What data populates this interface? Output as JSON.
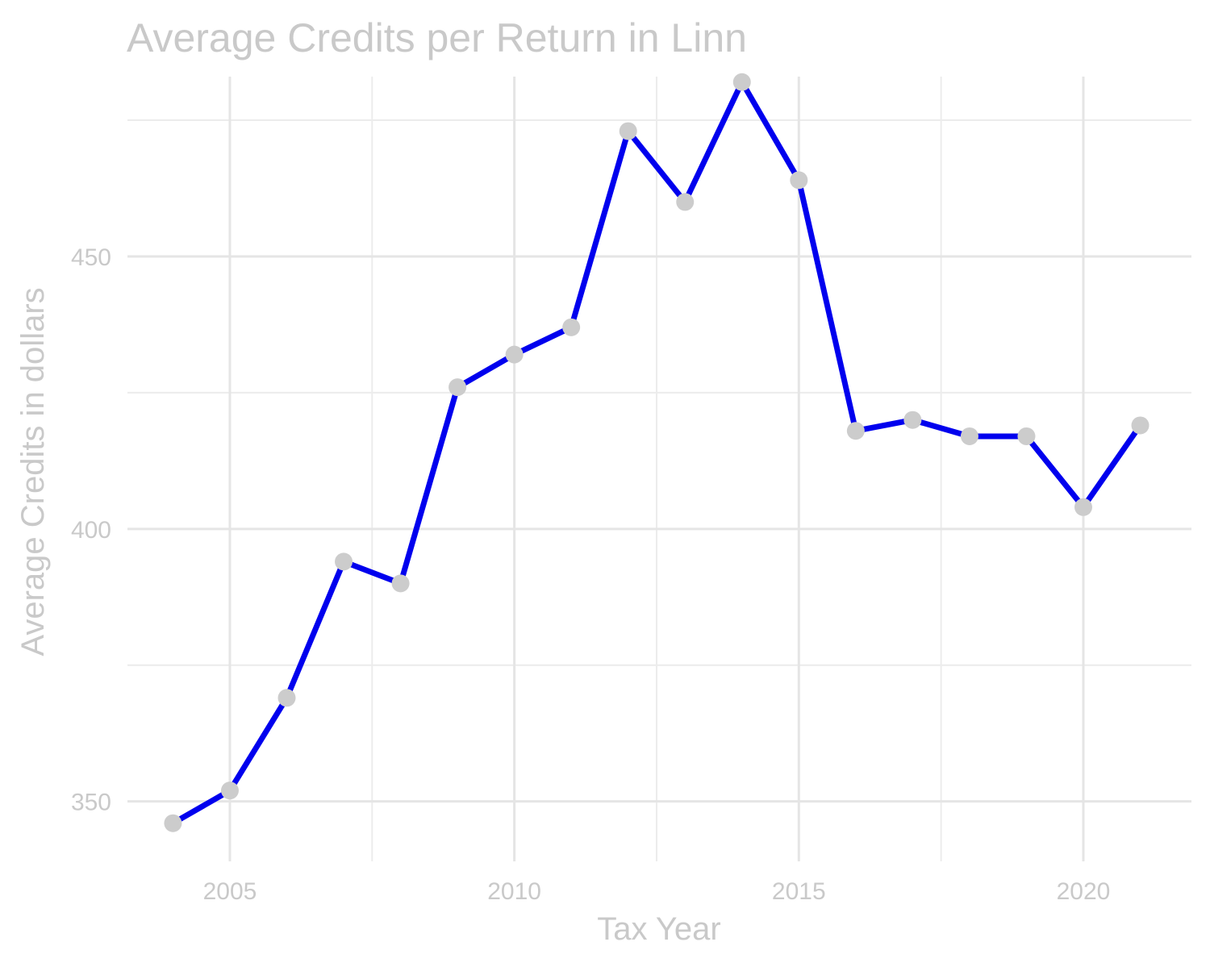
{
  "chart_data": {
    "type": "line",
    "title": "Average Credits per Return in Linn",
    "xlabel": "Tax Year",
    "ylabel": "Average Credits in dollars",
    "xlim": [
      2003.2,
      2021.9
    ],
    "ylim": [
      339,
      483
    ],
    "x_ticks": [
      2005,
      2010,
      2015,
      2020
    ],
    "x_minor_ticks": [
      2007.5,
      2012.5,
      2017.5
    ],
    "y_ticks": [
      350,
      400,
      450
    ],
    "y_minor_ticks": [
      375,
      425,
      475
    ],
    "grid": true,
    "legend": "none",
    "line_color": "#0000ee",
    "point_color": "#cccccc",
    "series": [
      {
        "x": [
          2004,
          2005,
          2006,
          2007,
          2008,
          2009,
          2010,
          2011,
          2012,
          2013,
          2014,
          2015,
          2016,
          2017,
          2018,
          2019,
          2020,
          2021
        ],
        "values": [
          346,
          352,
          369,
          394,
          390,
          426,
          432,
          437,
          473,
          460,
          482,
          464,
          418,
          420,
          417,
          417,
          404,
          419
        ]
      }
    ]
  }
}
